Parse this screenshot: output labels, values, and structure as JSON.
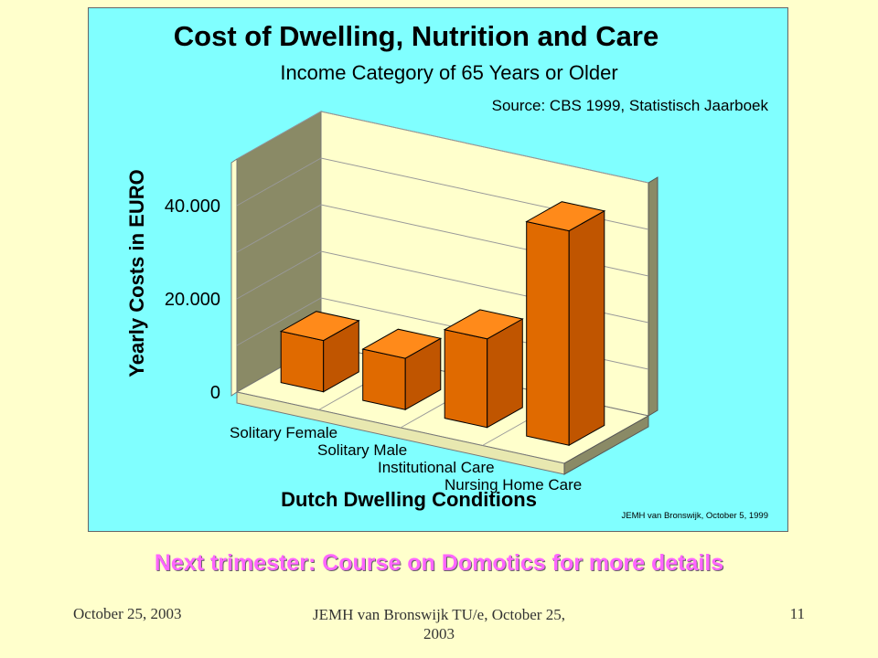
{
  "slide": {
    "note": "Next trimester: Course on Domotics for more details",
    "footer_date": "October 25, 2003",
    "footer_author": "JEMH van Bronswijk TU/e, October 25, 2003",
    "page_number": "11"
  },
  "colors": {
    "slide_background": "#ffffcc",
    "chart_background": "#80ffff",
    "bar_front": "#e06a00",
    "bar_top": "#ff8a1a",
    "bar_side": "#c05500",
    "wall": "#ffffcc",
    "left_wall": "#8a8a66",
    "note_text": "#ff66ff"
  },
  "chart_data": {
    "type": "bar",
    "style": "3d",
    "title": "Cost of Dwelling, Nutrition and Care",
    "subtitle": "Income Category of 65 Years or Older",
    "source": "Source: CBS 1999, Statistisch Jaarboek",
    "credit": "JEMH van Bronswijk, October 5, 1999",
    "xlabel": "Dutch Dwelling Conditions",
    "ylabel": "Yearly Costs in EURO",
    "categories": [
      "Solitary Female",
      "Solitary Male",
      "Institutional Care",
      "Nursing Home Care"
    ],
    "values": [
      11000,
      11000,
      19000,
      46000
    ],
    "ylim": [
      0,
      50000
    ],
    "yticks": [
      0,
      20000,
      40000
    ],
    "ytick_labels": [
      "0",
      "20.000",
      "40.000"
    ],
    "grid": true,
    "legend": "none"
  }
}
